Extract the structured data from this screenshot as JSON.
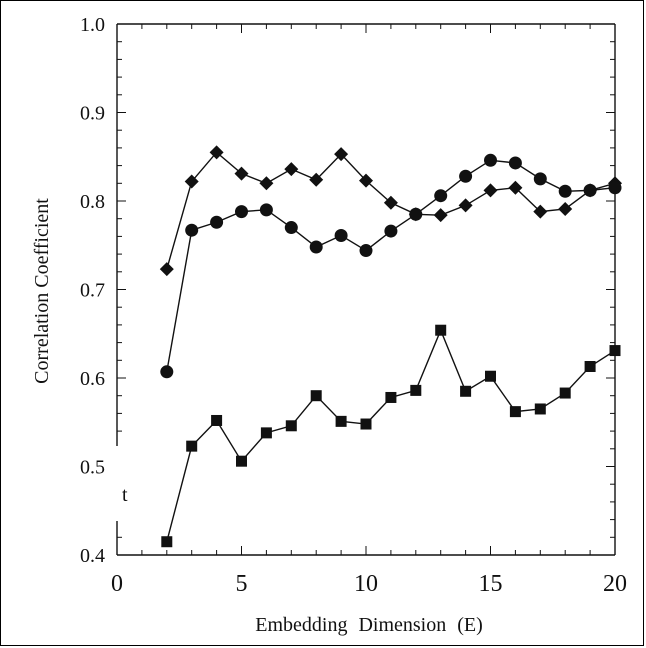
{
  "chart_data": {
    "type": "line",
    "xlabel": "Embedding Dimension (E)",
    "ylabel": "Correlation Coefficient",
    "xlim": [
      0,
      20
    ],
    "ylim": [
      0.4,
      1.0
    ],
    "x_ticks": [
      "0",
      "5",
      "10",
      "15",
      "20"
    ],
    "y_ticks": [
      "0.4",
      "0.5",
      "0.6",
      "0.7",
      "0.8",
      "0.9",
      "1.0"
    ],
    "annotation": "t",
    "grid": false,
    "legend": "none",
    "x": [
      2,
      3,
      4,
      5,
      6,
      7,
      8,
      9,
      10,
      11,
      12,
      13,
      14,
      15,
      16,
      17,
      18,
      19,
      20
    ],
    "series": [
      {
        "marker": "diamond",
        "values": [
          0.723,
          0.822,
          0.855,
          0.831,
          0.82,
          0.836,
          0.824,
          0.853,
          0.823,
          0.798,
          0.785,
          0.784,
          0.795,
          0.812,
          0.815,
          0.788,
          0.791,
          0.812,
          0.82
        ]
      },
      {
        "marker": "circle",
        "values": [
          0.607,
          0.767,
          0.776,
          0.788,
          0.79,
          0.77,
          0.748,
          0.761,
          0.744,
          0.766,
          0.785,
          0.806,
          0.828,
          0.846,
          0.843,
          0.825,
          0.811,
          0.812,
          0.815
        ]
      },
      {
        "marker": "square",
        "values": [
          0.415,
          0.523,
          0.552,
          0.506,
          0.538,
          0.546,
          0.58,
          0.551,
          0.548,
          0.578,
          0.586,
          0.654,
          0.585,
          0.602,
          0.562,
          0.565,
          0.583,
          0.613,
          0.631
        ]
      }
    ],
    "colors": {
      "line": "#111111",
      "marker": "#111111"
    }
  }
}
